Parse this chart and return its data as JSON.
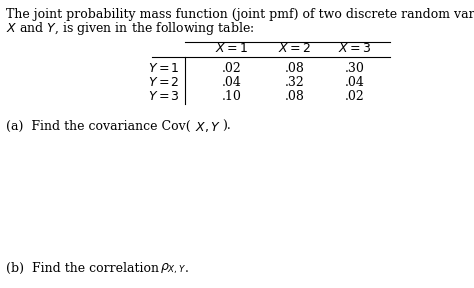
{
  "title_line1": "The joint probability mass function (joint pmf) of two discrete random variables,",
  "title_line2": "$X$ and $Y$, is given in the following table:",
  "col_headers": [
    "$X=1$",
    "$X=2$",
    "$X=3$"
  ],
  "row_headers": [
    "$Y=1$",
    "$Y=2$",
    "$Y=3$"
  ],
  "table_data": [
    [
      ".02",
      ".08",
      ".30"
    ],
    [
      ".04",
      ".32",
      ".04"
    ],
    [
      ".10",
      ".08",
      ".02"
    ]
  ],
  "part_a_prefix": "(a)  Find the covariance Cov(",
  "part_a_math": "$X,Y$",
  "part_a_suffix": ").",
  "part_b_prefix": "(b)  Find the correlation ",
  "part_b_math": "$\\rho_{X,Y}$",
  "part_b_suffix": ".",
  "bg_color": "#ffffff",
  "text_color": "#000000",
  "font_size": 9.0,
  "title_font_size": 9.0
}
